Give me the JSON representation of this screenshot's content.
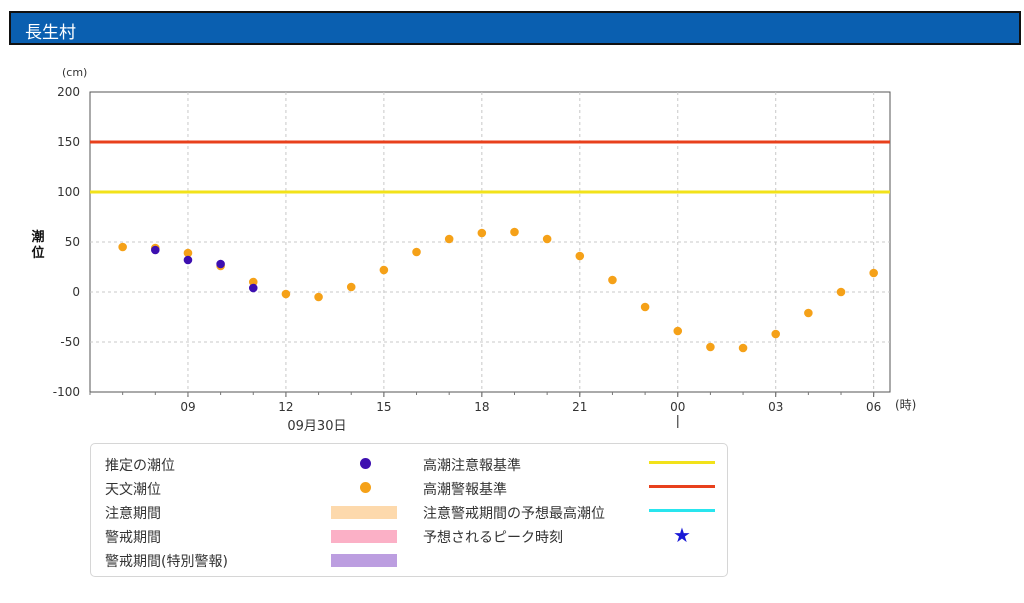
{
  "header": {
    "title": "長生村"
  },
  "chart_data": {
    "type": "scatter",
    "y_unit": "(cm)",
    "ylabel": "潮位",
    "x_unit": "(時)",
    "date_label": "09月30日",
    "ylim": [
      -100,
      200
    ],
    "yticks": [
      200,
      150,
      100,
      50,
      0,
      -50,
      -100
    ],
    "x_start_hour": 6,
    "x_end_hour": 30.5,
    "xticks": [
      {
        "hour": 9,
        "label": "09"
      },
      {
        "hour": 12,
        "label": "12"
      },
      {
        "hour": 15,
        "label": "15"
      },
      {
        "hour": 18,
        "label": "18"
      },
      {
        "hour": 21,
        "label": "21"
      },
      {
        "hour": 24,
        "label": "00"
      },
      {
        "hour": 27,
        "label": "03"
      },
      {
        "hour": 30,
        "label": "06"
      }
    ],
    "grid": true,
    "reference_lines": [
      {
        "name": "高潮注意報基準",
        "value": 100,
        "color": "#f2e21a"
      },
      {
        "name": "高潮警報基準",
        "value": 150,
        "color": "#e8401c"
      }
    ],
    "series": [
      {
        "name": "天文潮位",
        "color": "#f5a118",
        "points": [
          {
            "hour": 7,
            "value": 45
          },
          {
            "hour": 8,
            "value": 44
          },
          {
            "hour": 9,
            "value": 39
          },
          {
            "hour": 10,
            "value": 26
          },
          {
            "hour": 11,
            "value": 10
          },
          {
            "hour": 12,
            "value": -2
          },
          {
            "hour": 13,
            "value": -5
          },
          {
            "hour": 14,
            "value": 5
          },
          {
            "hour": 15,
            "value": 22
          },
          {
            "hour": 16,
            "value": 40
          },
          {
            "hour": 17,
            "value": 53
          },
          {
            "hour": 18,
            "value": 59
          },
          {
            "hour": 19,
            "value": 60
          },
          {
            "hour": 20,
            "value": 53
          },
          {
            "hour": 21,
            "value": 36
          },
          {
            "hour": 22,
            "value": 12
          },
          {
            "hour": 23,
            "value": -15
          },
          {
            "hour": 24,
            "value": -39
          },
          {
            "hour": 25,
            "value": -55
          },
          {
            "hour": 26,
            "value": -56
          },
          {
            "hour": 27,
            "value": -42
          },
          {
            "hour": 28,
            "value": -21
          },
          {
            "hour": 29,
            "value": 0
          },
          {
            "hour": 30,
            "value": 19
          }
        ]
      },
      {
        "name": "推定の潮位",
        "color": "#3d0fb0",
        "points": [
          {
            "hour": 8,
            "value": 42
          },
          {
            "hour": 9,
            "value": 32
          },
          {
            "hour": 10,
            "value": 28
          },
          {
            "hour": 11,
            "value": 4
          }
        ]
      }
    ]
  },
  "legend": {
    "left": [
      {
        "label": "推定の潮位",
        "type": "dot",
        "color": "#3d0fb0"
      },
      {
        "label": "天文潮位",
        "type": "dot",
        "color": "#f5a118"
      },
      {
        "label": "注意期間",
        "type": "box",
        "color": "#fdd9ac"
      },
      {
        "label": "警戒期間",
        "type": "box",
        "color": "#fbb0c6"
      },
      {
        "label": "警戒期間(特別警報)",
        "type": "box",
        "color": "#bc9ee0"
      }
    ],
    "right": [
      {
        "label": "高潮注意報基準",
        "type": "line",
        "color": "#f2e21a"
      },
      {
        "label": "高潮警報基準",
        "type": "line",
        "color": "#e8401c"
      },
      {
        "label": "注意警戒期間の予想最高潮位",
        "type": "line",
        "color": "#29e5ee"
      },
      {
        "label": "予想されるピーク時刻",
        "type": "star",
        "color": "#1a1ad6",
        "symbol": "★"
      }
    ]
  }
}
